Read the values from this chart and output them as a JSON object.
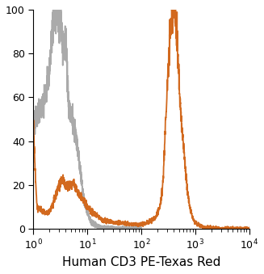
{
  "title": "",
  "xlabel": "Human CD3 PE-Texas Red",
  "ylabel": "",
  "xlim_log": [
    1,
    10000
  ],
  "ylim": [
    0,
    100
  ],
  "yticks": [
    0,
    20,
    40,
    60,
    80,
    100
  ],
  "xticks_log": [
    1,
    10,
    100,
    1000,
    10000
  ],
  "orange_color": "#D2691E",
  "gray_color": "#AAAAAA",
  "background_color": "#FFFFFF",
  "linewidth": 1.3,
  "xlabel_fontsize": 11,
  "gray_x": [
    1.0,
    1.2,
    1.4,
    1.6,
    1.8,
    2.0,
    2.2,
    2.5,
    2.8,
    3.0,
    3.2,
    3.5,
    3.8,
    4.0,
    4.3,
    4.6,
    5.0,
    5.5,
    6.0,
    6.5,
    7.0,
    7.5,
    8.0,
    9.0,
    10.0,
    11.0,
    12.0,
    14.0,
    16.0,
    20.0,
    25.0,
    30.0,
    40.0,
    50.0,
    70.0,
    100.0
  ],
  "gray_y": [
    48,
    52,
    55,
    60,
    65,
    73,
    87,
    98,
    100,
    95,
    98,
    85,
    82,
    85,
    68,
    55,
    52,
    48,
    44,
    38,
    32,
    26,
    20,
    12,
    8,
    5,
    3,
    2,
    1,
    0.5,
    0.3,
    0.2,
    0.1,
    0.05,
    0.02,
    0
  ],
  "orange_x": [
    1.0,
    1.2,
    1.5,
    1.8,
    2.0,
    2.2,
    2.5,
    2.8,
    3.0,
    3.2,
    3.5,
    3.8,
    4.0,
    4.3,
    4.6,
    5.0,
    5.5,
    6.0,
    7.0,
    8.0,
    9.0,
    10.0,
    12.0,
    15.0,
    20.0,
    30.0,
    50.0,
    70.0,
    100.0,
    120.0,
    150.0,
    180.0,
    200.0,
    220.0,
    250.0,
    280.0,
    320.0,
    360.0,
    400.0,
    450.0,
    500.0,
    550.0,
    600.0,
    650.0,
    700.0,
    800.0,
    900.0,
    1000.0,
    1200.0,
    1500.0,
    2000.0,
    3000.0,
    5000.0,
    10000.0
  ],
  "orange_y": [
    50,
    10,
    8,
    7,
    8,
    10,
    14,
    18,
    20,
    21,
    22,
    21,
    19,
    20,
    19,
    20,
    21,
    19,
    16,
    14,
    12,
    10,
    8,
    6,
    4,
    3,
    2.5,
    2.0,
    2.0,
    2.5,
    3.5,
    5.0,
    7.0,
    10.0,
    20.0,
    45.0,
    75.0,
    95.0,
    100.0,
    92.0,
    68.0,
    50.0,
    40.0,
    30.0,
    20.0,
    10.0,
    5.0,
    3.0,
    1.5,
    0.8,
    0.4,
    0.2,
    0.1,
    0
  ]
}
